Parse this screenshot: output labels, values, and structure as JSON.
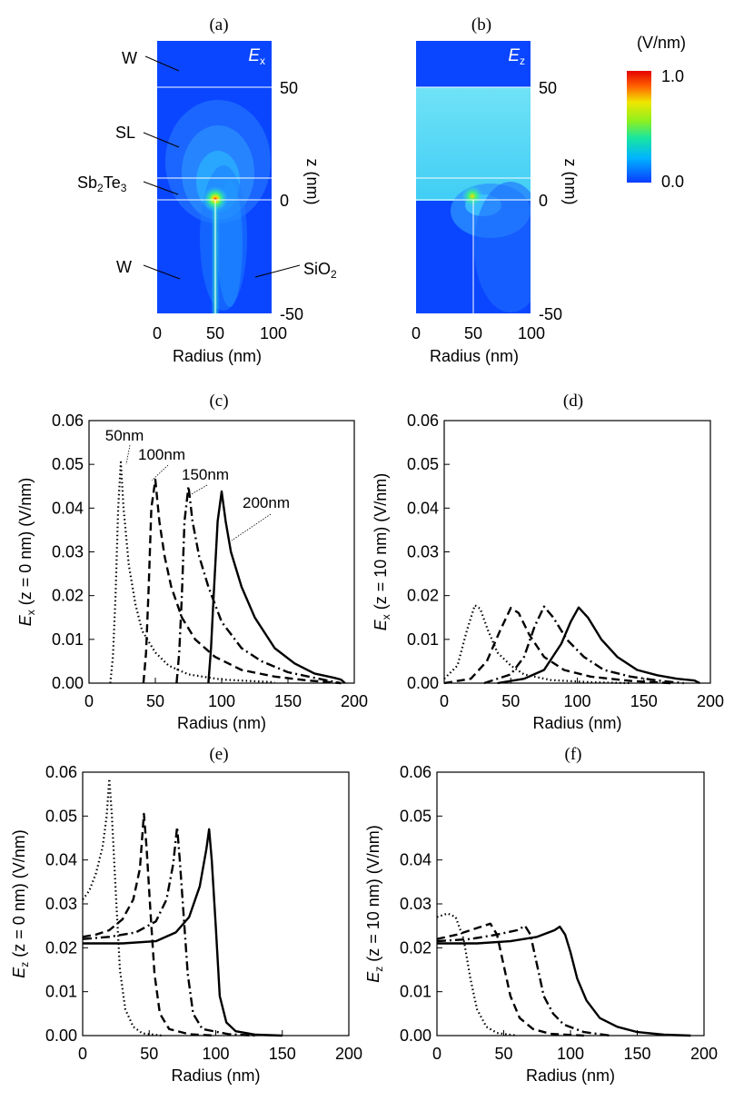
{
  "colorbar": {
    "unit": "(V/nm)",
    "max_label": "1.0",
    "min_label": "0.0",
    "colors": [
      "#0a3cff",
      "#00b4ff",
      "#18e6a0",
      "#8cf020",
      "#f0e600",
      "#ff6400",
      "#e60000"
    ]
  },
  "chart_data": [
    {
      "id": "a",
      "type": "heatmap",
      "panel_label": "(a)",
      "field_label": "E",
      "field_sub": "x",
      "xlabel": "Radius (nm)",
      "ylabel": "z (nm)",
      "xticks": [
        "0",
        "50",
        "100"
      ],
      "yticks": [
        "50",
        "0",
        "-50"
      ],
      "xlim": [
        0,
        100
      ],
      "ylim": [
        -50,
        70
      ],
      "layer_annotations": [
        {
          "text": "W",
          "sub": ""
        },
        {
          "text": "SL",
          "sub": ""
        },
        {
          "text": "Sb",
          "sub": "2",
          "text2": "Te",
          "sub2": "3"
        },
        {
          "text": "W",
          "sub": ""
        },
        {
          "text": "SiO",
          "sub": "2"
        }
      ]
    },
    {
      "id": "b",
      "type": "heatmap",
      "panel_label": "(b)",
      "field_label": "E",
      "field_sub": "z",
      "xlabel": "Radius (nm)",
      "ylabel": "z (nm)",
      "xticks": [
        "0",
        "50",
        "100"
      ],
      "yticks": [
        "50",
        "0",
        "-50"
      ],
      "xlim": [
        0,
        100
      ],
      "ylim": [
        -50,
        70
      ]
    },
    {
      "id": "c",
      "type": "line",
      "panel_label": "(c)",
      "ylabel_main": "E",
      "ylabel_sub": "x",
      "ylabel_rest": " (z = 0 nm) (V/nm)",
      "xlabel": "Radius (nm)",
      "xlim": [
        0,
        200
      ],
      "ylim": [
        0,
        0.06
      ],
      "xticks": [
        "0",
        "50",
        "100",
        "150",
        "200"
      ],
      "yticks": [
        "0.00",
        "0.01",
        "0.02",
        "0.03",
        "0.04",
        "0.05",
        "0.06"
      ],
      "annotations": [
        "50nm",
        "100nm",
        "150nm",
        "200nm"
      ],
      "series": [
        {
          "name": "50nm",
          "dash": "dot",
          "points": [
            [
              16,
              0
            ],
            [
              18,
              0.006
            ],
            [
              20,
              0.02
            ],
            [
              22,
              0.04
            ],
            [
              24,
              0.0505
            ],
            [
              26,
              0.04
            ],
            [
              30,
              0.027
            ],
            [
              35,
              0.018
            ],
            [
              40,
              0.012
            ],
            [
              50,
              0.007
            ],
            [
              60,
              0.004
            ],
            [
              75,
              0.002
            ],
            [
              100,
              0.0008
            ],
            [
              140,
              0.0002
            ]
          ]
        },
        {
          "name": "100nm",
          "dash": "dash",
          "points": [
            [
              41,
              0
            ],
            [
              43,
              0.007
            ],
            [
              45,
              0.022
            ],
            [
              47,
              0.04
            ],
            [
              50,
              0.0465
            ],
            [
              53,
              0.037
            ],
            [
              57,
              0.029
            ],
            [
              62,
              0.022
            ],
            [
              70,
              0.015
            ],
            [
              80,
              0.01
            ],
            [
              95,
              0.006
            ],
            [
              115,
              0.003
            ],
            [
              140,
              0.0015
            ],
            [
              165,
              0.0006
            ],
            [
              190,
              0
            ]
          ]
        },
        {
          "name": "150nm",
          "dash": "dashdot",
          "points": [
            [
              66,
              0
            ],
            [
              68,
              0.007
            ],
            [
              70,
              0.02
            ],
            [
              72,
              0.037
            ],
            [
              75,
              0.045
            ],
            [
              78,
              0.037
            ],
            [
              83,
              0.029
            ],
            [
              90,
              0.022
            ],
            [
              100,
              0.014
            ],
            [
              115,
              0.008
            ],
            [
              130,
              0.005
            ],
            [
              150,
              0.0025
            ],
            [
              170,
              0.0012
            ],
            [
              190,
              0
            ]
          ]
        },
        {
          "name": "200nm",
          "dash": "solid",
          "points": [
            [
              90,
              0
            ],
            [
              92,
              0.008
            ],
            [
              94,
              0.02
            ],
            [
              97,
              0.037
            ],
            [
              100,
              0.0438
            ],
            [
              103,
              0.037
            ],
            [
              107,
              0.03
            ],
            [
              115,
              0.022
            ],
            [
              125,
              0.015
            ],
            [
              140,
              0.008
            ],
            [
              155,
              0.0045
            ],
            [
              170,
              0.0022
            ],
            [
              185,
              0.0012
            ],
            [
              190,
              0.0008
            ],
            [
              193,
              0
            ]
          ]
        }
      ]
    },
    {
      "id": "d",
      "type": "line",
      "panel_label": "(d)",
      "ylabel_main": "E",
      "ylabel_sub": "x",
      "ylabel_rest": " (z = 10 nm) (V/nm)",
      "xlabel": "Radius (nm)",
      "xlim": [
        0,
        200
      ],
      "ylim": [
        0,
        0.06
      ],
      "xticks": [
        "0",
        "50",
        "100",
        "150",
        "200"
      ],
      "yticks": [
        "0.00",
        "0.01",
        "0.02",
        "0.03",
        "0.04",
        "0.05",
        "0.06"
      ],
      "series": [
        {
          "name": "50nm",
          "dash": "dot",
          "points": [
            [
              0,
              0.001
            ],
            [
              10,
              0.004
            ],
            [
              17,
              0.012
            ],
            [
              23,
              0.0178
            ],
            [
              27,
              0.017
            ],
            [
              33,
              0.012
            ],
            [
              40,
              0.007
            ],
            [
              50,
              0.004
            ],
            [
              60,
              0.002
            ],
            [
              80,
              0.0007
            ],
            [
              110,
              0.0002
            ],
            [
              140,
              0
            ]
          ]
        },
        {
          "name": "100nm",
          "dash": "dash",
          "points": [
            [
              0,
              0
            ],
            [
              20,
              0.001
            ],
            [
              32,
              0.005
            ],
            [
              42,
              0.012
            ],
            [
              50,
              0.0172
            ],
            [
              56,
              0.016
            ],
            [
              64,
              0.011
            ],
            [
              75,
              0.006
            ],
            [
              90,
              0.003
            ],
            [
              110,
              0.0015
            ],
            [
              140,
              0.0005
            ],
            [
              170,
              0
            ]
          ]
        },
        {
          "name": "150nm",
          "dash": "dashdot",
          "points": [
            [
              30,
              0
            ],
            [
              50,
              0.002
            ],
            [
              60,
              0.006
            ],
            [
              68,
              0.013
            ],
            [
              75,
              0.0175
            ],
            [
              82,
              0.015
            ],
            [
              92,
              0.01
            ],
            [
              105,
              0.006
            ],
            [
              120,
              0.003
            ],
            [
              140,
              0.0015
            ],
            [
              160,
              0.0006
            ],
            [
              180,
              0
            ]
          ]
        },
        {
          "name": "200nm",
          "dash": "solid",
          "points": [
            [
              40,
              0
            ],
            [
              60,
              0.001
            ],
            [
              75,
              0.003
            ],
            [
              88,
              0.009
            ],
            [
              95,
              0.014
            ],
            [
              101,
              0.0173
            ],
            [
              108,
              0.015
            ],
            [
              118,
              0.01
            ],
            [
              130,
              0.006
            ],
            [
              145,
              0.003
            ],
            [
              160,
              0.0018
            ],
            [
              175,
              0.001
            ],
            [
              188,
              0.0006
            ],
            [
              192,
              0
            ]
          ]
        }
      ]
    },
    {
      "id": "e",
      "type": "line",
      "panel_label": "(e)",
      "ylabel_main": "E",
      "ylabel_sub": "z",
      "ylabel_rest": " (z = 0 nm) (V/nm)",
      "xlabel": "Radius (nm)",
      "xlim": [
        0,
        200
      ],
      "ylim": [
        0,
        0.06
      ],
      "xticks": [
        "0",
        "50",
        "100",
        "150",
        "200"
      ],
      "yticks": [
        "0.00",
        "0.01",
        "0.02",
        "0.03",
        "0.04",
        "0.05",
        "0.06"
      ],
      "series": [
        {
          "name": "50nm",
          "dash": "dot",
          "points": [
            [
              0,
              0.031
            ],
            [
              5,
              0.033
            ],
            [
              10,
              0.037
            ],
            [
              15,
              0.043
            ],
            [
              18,
              0.05
            ],
            [
              20,
              0.0585
            ],
            [
              22,
              0.05
            ],
            [
              25,
              0.032
            ],
            [
              28,
              0.015
            ],
            [
              32,
              0.006
            ],
            [
              38,
              0.002
            ],
            [
              45,
              0.0005
            ],
            [
              60,
              0
            ]
          ]
        },
        {
          "name": "100nm",
          "dash": "dash",
          "points": [
            [
              0,
              0.0225
            ],
            [
              10,
              0.023
            ],
            [
              20,
              0.024
            ],
            [
              30,
              0.0265
            ],
            [
              38,
              0.031
            ],
            [
              43,
              0.038
            ],
            [
              46,
              0.0505
            ],
            [
              48,
              0.043
            ],
            [
              51,
              0.028
            ],
            [
              54,
              0.014
            ],
            [
              58,
              0.005
            ],
            [
              65,
              0.0015
            ],
            [
              80,
              0.0003
            ],
            [
              100,
              0
            ]
          ]
        },
        {
          "name": "150nm",
          "dash": "dashdot",
          "points": [
            [
              0,
              0.022
            ],
            [
              20,
              0.0225
            ],
            [
              40,
              0.0235
            ],
            [
              55,
              0.026
            ],
            [
              63,
              0.031
            ],
            [
              68,
              0.039
            ],
            [
              71,
              0.0475
            ],
            [
              73,
              0.04
            ],
            [
              76,
              0.027
            ],
            [
              79,
              0.014
            ],
            [
              83,
              0.005
            ],
            [
              90,
              0.0015
            ],
            [
              110,
              0.0003
            ],
            [
              130,
              0
            ]
          ]
        },
        {
          "name": "200nm",
          "dash": "solid",
          "points": [
            [
              0,
              0.021
            ],
            [
              30,
              0.021
            ],
            [
              55,
              0.0215
            ],
            [
              70,
              0.0235
            ],
            [
              80,
              0.027
            ],
            [
              88,
              0.034
            ],
            [
              93,
              0.0425
            ],
            [
              95,
              0.047
            ],
            [
              97,
              0.04
            ],
            [
              100,
              0.025
            ],
            [
              103,
              0.009
            ],
            [
              108,
              0.003
            ],
            [
              115,
              0.001
            ],
            [
              130,
              0.0002
            ],
            [
              150,
              0
            ]
          ]
        }
      ]
    },
    {
      "id": "f",
      "type": "line",
      "panel_label": "(f)",
      "ylabel_main": "E",
      "ylabel_sub": "z",
      "ylabel_rest": " (z = 10 nm) (V/nm)",
      "xlabel": "Radius (nm)",
      "xlim": [
        0,
        200
      ],
      "ylim": [
        0,
        0.06
      ],
      "xticks": [
        "0",
        "50",
        "100",
        "150",
        "200"
      ],
      "yticks": [
        "0.00",
        "0.01",
        "0.02",
        "0.03",
        "0.04",
        "0.05",
        "0.06"
      ],
      "series": [
        {
          "name": "50nm",
          "dash": "dot",
          "points": [
            [
              0,
              0.027
            ],
            [
              8,
              0.0278
            ],
            [
              14,
              0.027
            ],
            [
              20,
              0.022
            ],
            [
              25,
              0.013
            ],
            [
              30,
              0.006
            ],
            [
              37,
              0.002
            ],
            [
              45,
              0.0006
            ],
            [
              60,
              0
            ]
          ]
        },
        {
          "name": "100nm",
          "dash": "dash",
          "points": [
            [
              0,
              0.022
            ],
            [
              15,
              0.023
            ],
            [
              25,
              0.024
            ],
            [
              35,
              0.025
            ],
            [
              40,
              0.0255
            ],
            [
              45,
              0.023
            ],
            [
              50,
              0.016
            ],
            [
              55,
              0.009
            ],
            [
              62,
              0.004
            ],
            [
              72,
              0.0015
            ],
            [
              85,
              0.0004
            ],
            [
              110,
              0
            ]
          ]
        },
        {
          "name": "150nm",
          "dash": "dashdot",
          "points": [
            [
              0,
              0.0215
            ],
            [
              25,
              0.022
            ],
            [
              45,
              0.023
            ],
            [
              60,
              0.024
            ],
            [
              66,
              0.025
            ],
            [
              70,
              0.023
            ],
            [
              75,
              0.016
            ],
            [
              80,
              0.009
            ],
            [
              87,
              0.005
            ],
            [
              95,
              0.0025
            ],
            [
              110,
              0.0008
            ],
            [
              130,
              0
            ]
          ]
        },
        {
          "name": "200nm",
          "dash": "solid",
          "points": [
            [
              0,
              0.021
            ],
            [
              30,
              0.021
            ],
            [
              55,
              0.0215
            ],
            [
              75,
              0.0225
            ],
            [
              88,
              0.024
            ],
            [
              92,
              0.0248
            ],
            [
              96,
              0.023
            ],
            [
              100,
              0.019
            ],
            [
              105,
              0.013
            ],
            [
              112,
              0.008
            ],
            [
              122,
              0.004
            ],
            [
              135,
              0.002
            ],
            [
              150,
              0.0008
            ],
            [
              170,
              0.0002
            ],
            [
              190,
              0
            ]
          ]
        }
      ]
    }
  ]
}
